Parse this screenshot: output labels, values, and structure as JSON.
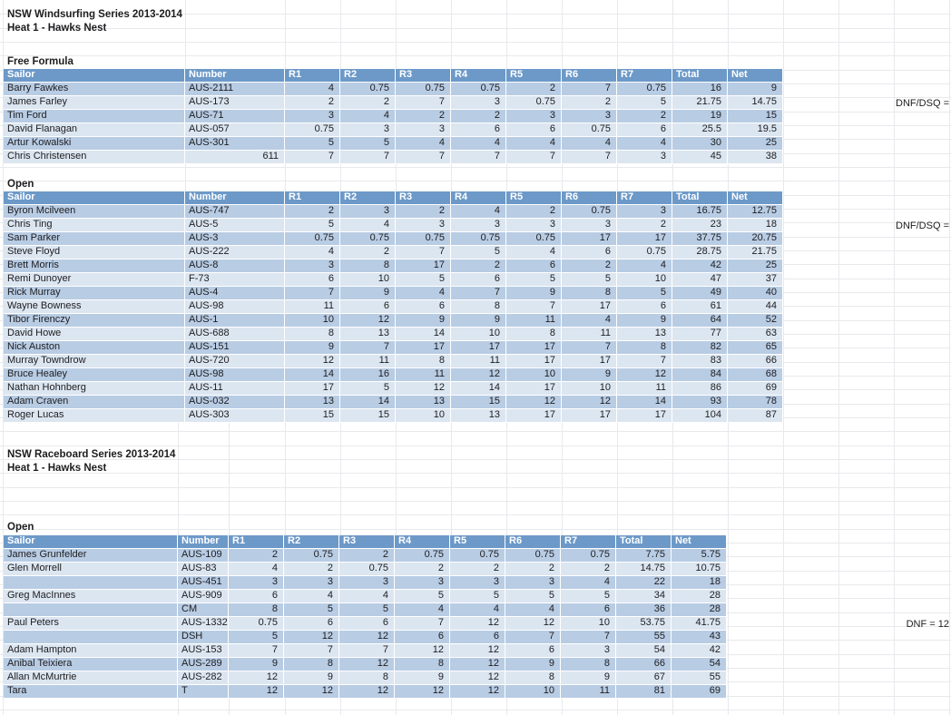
{
  "sections": [
    {
      "title": "NSW Windsurfing Series 2013-2014",
      "subtitle": "Heat 1 - Hawks Nest"
    },
    {
      "title": "NSW Raceboard Series 2013-2014",
      "subtitle": "Heat 1 - Hawks Nest"
    }
  ],
  "notes": [
    {
      "text": "DNF/DSQ ="
    },
    {
      "text": "DNF/DSQ ="
    },
    {
      "text": "DNF = 12"
    }
  ],
  "colors": {
    "header_bg": "#6c99c8",
    "row_dark": "#b8cce4",
    "row_light": "#dce6f1",
    "header_text": "#ffffff",
    "gridline": "#e7e9ec",
    "cell_text": "#1d1d1f"
  },
  "tables": [
    {
      "label": "Free Formula",
      "columns": [
        "Sailor",
        "Number",
        "R1",
        "R2",
        "R3",
        "R4",
        "R5",
        "R6",
        "R7",
        "Total",
        "Net"
      ],
      "rows": [
        {
          "sailor": "Barry Fawkes",
          "number": "AUS-2111",
          "scores": [
            "4",
            "0.75",
            "0.75",
            "0.75",
            "2",
            "7",
            "0.75",
            "16",
            "9"
          ]
        },
        {
          "sailor": "James Farley",
          "number": "AUS-173",
          "scores": [
            "2",
            "2",
            "7",
            "3",
            "0.75",
            "2",
            "5",
            "21.75",
            "14.75"
          ]
        },
        {
          "sailor": "Tim Ford",
          "number": "AUS-71",
          "scores": [
            "3",
            "4",
            "2",
            "2",
            "3",
            "3",
            "2",
            "19",
            "15"
          ]
        },
        {
          "sailor": "David Flanagan",
          "number": "AUS-057",
          "scores": [
            "0.75",
            "3",
            "3",
            "6",
            "6",
            "0.75",
            "6",
            "25.5",
            "19.5"
          ]
        },
        {
          "sailor": "Artur Kowalski",
          "number": "AUS-301",
          "scores": [
            "5",
            "5",
            "4",
            "4",
            "4",
            "4",
            "4",
            "30",
            "25"
          ]
        },
        {
          "sailor": "Chris Christensen",
          "number": "611",
          "scores": [
            "7",
            "7",
            "7",
            "7",
            "7",
            "7",
            "3",
            "45",
            "38"
          ]
        }
      ]
    },
    {
      "label": "Open",
      "columns": [
        "Sailor",
        "Number",
        "R1",
        "R2",
        "R3",
        "R4",
        "R5",
        "R6",
        "R7",
        "Total",
        "Net"
      ],
      "rows": [
        {
          "sailor": "Byron Mcilveen",
          "number": "AUS-747",
          "scores": [
            "2",
            "3",
            "2",
            "4",
            "2",
            "0.75",
            "3",
            "16.75",
            "12.75"
          ]
        },
        {
          "sailor": "Chris Ting",
          "number": "AUS-5",
          "scores": [
            "5",
            "4",
            "3",
            "3",
            "3",
            "3",
            "2",
            "23",
            "18"
          ]
        },
        {
          "sailor": "Sam Parker",
          "number": "AUS-3",
          "scores": [
            "0.75",
            "0.75",
            "0.75",
            "0.75",
            "0.75",
            "17",
            "17",
            "37.75",
            "20.75"
          ]
        },
        {
          "sailor": "Steve Floyd",
          "number": "AUS-222",
          "scores": [
            "4",
            "2",
            "7",
            "5",
            "4",
            "6",
            "0.75",
            "28.75",
            "21.75"
          ]
        },
        {
          "sailor": "Brett Morris",
          "number": "AUS-8",
          "scores": [
            "3",
            "8",
            "17",
            "2",
            "6",
            "2",
            "4",
            "42",
            "25"
          ]
        },
        {
          "sailor": "Remi Dunoyer",
          "number": "F-73",
          "scores": [
            "6",
            "10",
            "5",
            "6",
            "5",
            "5",
            "10",
            "47",
            "37"
          ]
        },
        {
          "sailor": "Rick Murray",
          "number": "AUS-4",
          "scores": [
            "7",
            "9",
            "4",
            "7",
            "9",
            "8",
            "5",
            "49",
            "40"
          ]
        },
        {
          "sailor": "Wayne Bowness",
          "number": "AUS-98",
          "scores": [
            "11",
            "6",
            "6",
            "8",
            "7",
            "17",
            "6",
            "61",
            "44"
          ]
        },
        {
          "sailor": "Tibor Firenczy",
          "number": "AUS-1",
          "scores": [
            "10",
            "12",
            "9",
            "9",
            "11",
            "4",
            "9",
            "64",
            "52"
          ]
        },
        {
          "sailor": "David Howe",
          "number": "AUS-688",
          "scores": [
            "8",
            "13",
            "14",
            "10",
            "8",
            "11",
            "13",
            "77",
            "63"
          ]
        },
        {
          "sailor": "Nick Auston",
          "number": "AUS-151",
          "scores": [
            "9",
            "7",
            "17",
            "17",
            "17",
            "7",
            "8",
            "82",
            "65"
          ]
        },
        {
          "sailor": "Murray Towndrow",
          "number": "AUS-720",
          "scores": [
            "12",
            "11",
            "8",
            "11",
            "17",
            "17",
            "7",
            "83",
            "66"
          ]
        },
        {
          "sailor": "Bruce Healey",
          "number": "AUS-98",
          "scores": [
            "14",
            "16",
            "11",
            "12",
            "10",
            "9",
            "12",
            "84",
            "68"
          ]
        },
        {
          "sailor": "Nathan Hohnberg",
          "number": "AUS-11",
          "scores": [
            "17",
            "5",
            "12",
            "14",
            "17",
            "10",
            "11",
            "86",
            "69"
          ]
        },
        {
          "sailor": "Adam Craven",
          "number": "AUS-032",
          "scores": [
            "13",
            "14",
            "13",
            "15",
            "12",
            "12",
            "14",
            "93",
            "78"
          ]
        },
        {
          "sailor": "Roger Lucas",
          "number": "AUS-303",
          "scores": [
            "15",
            "15",
            "10",
            "13",
            "17",
            "17",
            "17",
            "104",
            "87"
          ]
        }
      ]
    },
    {
      "label": "Open",
      "columns": [
        "Sailor",
        "Number",
        "R1",
        "R2",
        "R3",
        "R4",
        "R5",
        "R6",
        "R7",
        "Total",
        "Net"
      ],
      "rows": [
        {
          "sailor": "James Grunfelder",
          "number": "AUS-109",
          "scores": [
            "2",
            "0.75",
            "2",
            "0.75",
            "0.75",
            "0.75",
            "0.75",
            "7.75",
            "5.75"
          ]
        },
        {
          "sailor": "Glen Morrell",
          "number": "AUS-83",
          "scores": [
            "4",
            "2",
            "0.75",
            "2",
            "2",
            "2",
            "2",
            "14.75",
            "10.75"
          ]
        },
        {
          "sailor": "",
          "number": "AUS-451",
          "scores": [
            "3",
            "3",
            "3",
            "3",
            "3",
            "3",
            "4",
            "22",
            "18"
          ]
        },
        {
          "sailor": "Greg MacInnes",
          "number": "AUS-909",
          "scores": [
            "6",
            "4",
            "4",
            "5",
            "5",
            "5",
            "5",
            "34",
            "28"
          ]
        },
        {
          "sailor": "",
          "number": "CM",
          "scores": [
            "8",
            "5",
            "5",
            "4",
            "4",
            "4",
            "6",
            "36",
            "28"
          ]
        },
        {
          "sailor": "Paul Peters",
          "number": "AUS-1332",
          "scores": [
            "0.75",
            "6",
            "6",
            "7",
            "12",
            "12",
            "10",
            "53.75",
            "41.75"
          ]
        },
        {
          "sailor": "",
          "number": "DSH",
          "scores": [
            "5",
            "12",
            "12",
            "6",
            "6",
            "7",
            "7",
            "55",
            "43"
          ]
        },
        {
          "sailor": "Adam Hampton",
          "number": "AUS-153",
          "scores": [
            "7",
            "7",
            "7",
            "12",
            "12",
            "6",
            "3",
            "54",
            "42"
          ]
        },
        {
          "sailor": "Anibal Teixiera",
          "number": "AUS-289",
          "scores": [
            "9",
            "8",
            "12",
            "8",
            "12",
            "9",
            "8",
            "66",
            "54"
          ]
        },
        {
          "sailor": "Allan McMurtrie",
          "number": "AUS-282",
          "scores": [
            "12",
            "9",
            "8",
            "9",
            "12",
            "8",
            "9",
            "67",
            "55"
          ]
        },
        {
          "sailor": "Tara",
          "number": "T",
          "scores": [
            "12",
            "12",
            "12",
            "12",
            "12",
            "10",
            "11",
            "81",
            "69"
          ]
        }
      ]
    }
  ]
}
